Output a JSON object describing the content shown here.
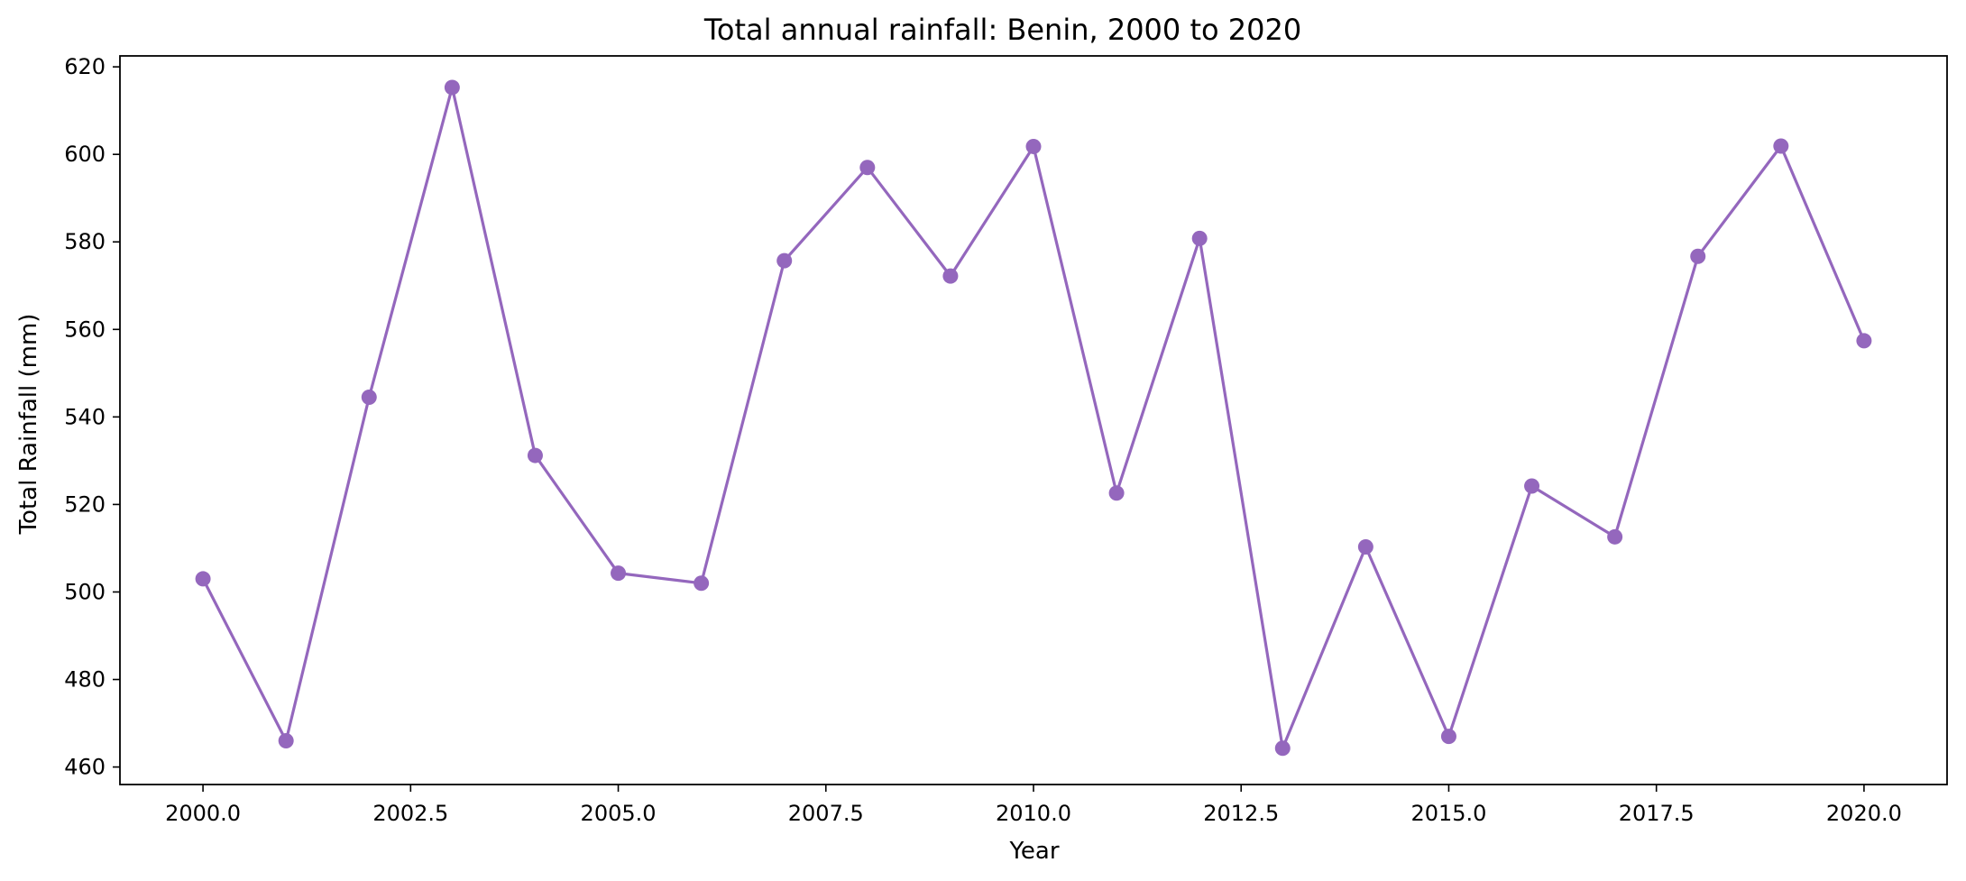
{
  "chart_data": {
    "type": "line",
    "title": "Total annual rainfall: Benin, 2000 to 2020",
    "xlabel": "Year",
    "ylabel": "Total Rainfall (mm)",
    "xlim": [
      1999.0,
      2021.0
    ],
    "ylim": [
      456.0,
      622.5
    ],
    "x_ticks": [
      2000.0,
      2002.5,
      2005.0,
      2007.5,
      2010.0,
      2012.5,
      2015.0,
      2017.5,
      2020.0
    ],
    "x_tick_labels": [
      "2000.0",
      "2002.5",
      "2005.0",
      "2007.5",
      "2010.0",
      "2012.5",
      "2015.0",
      "2017.5",
      "2020.0"
    ],
    "y_ticks": [
      460,
      480,
      500,
      520,
      540,
      560,
      580,
      600,
      620
    ],
    "y_tick_labels": [
      "460",
      "480",
      "500",
      "520",
      "540",
      "560",
      "580",
      "600",
      "620"
    ],
    "grid": false,
    "series": [
      {
        "color": "#9467bd",
        "marker": "circle",
        "x": [
          2000,
          2001,
          2002,
          2003,
          2004,
          2005,
          2006,
          2007,
          2008,
          2009,
          2010,
          2011,
          2012,
          2013,
          2014,
          2015,
          2016,
          2017,
          2018,
          2019,
          2020
        ],
        "y": [
          503.0,
          466.0,
          544.5,
          615.3,
          531.2,
          504.3,
          502.0,
          575.7,
          597.0,
          572.2,
          601.8,
          522.6,
          580.8,
          464.3,
          510.3,
          467.0,
          524.2,
          512.6,
          576.7,
          601.9,
          557.4
        ]
      }
    ]
  }
}
